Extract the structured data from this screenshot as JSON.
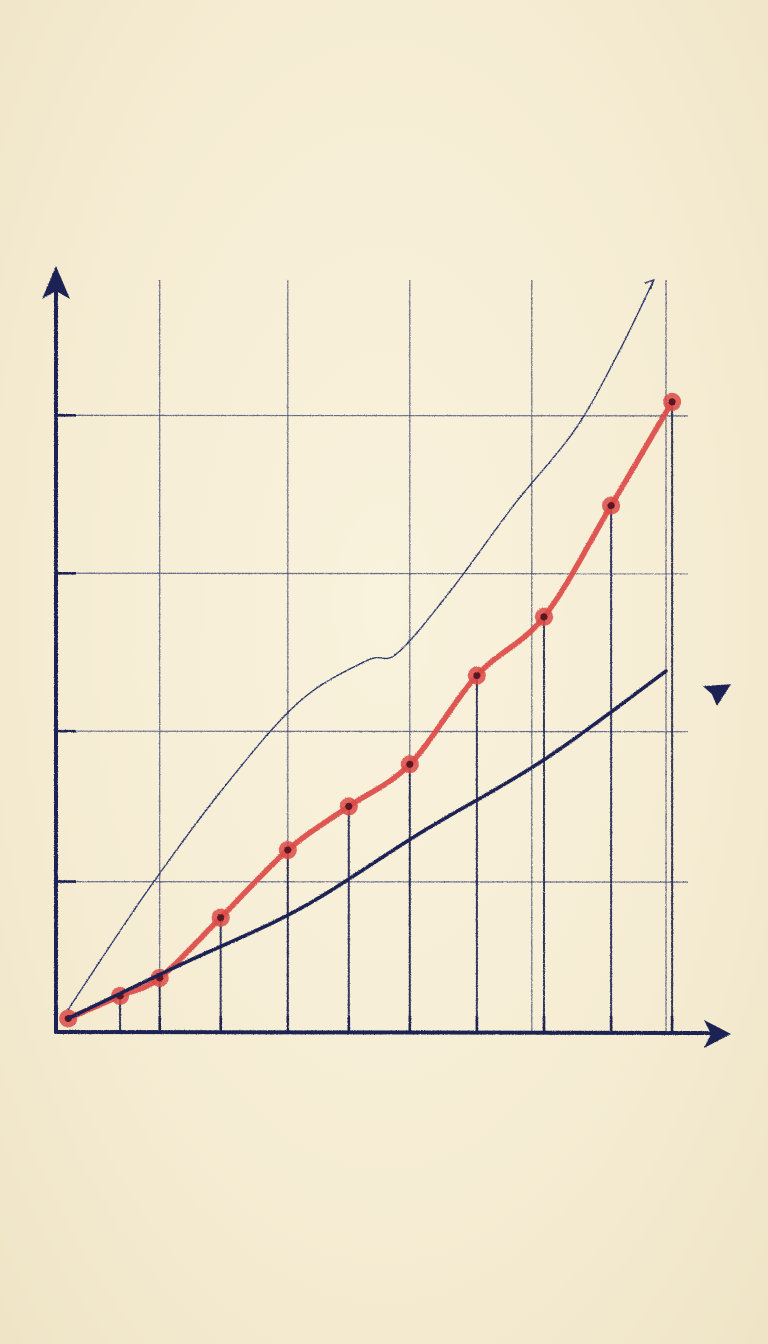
{
  "chart_data": {
    "type": "line",
    "title": "",
    "xlabel": "",
    "ylabel": "",
    "grid": true,
    "xlim": [
      0,
      10
    ],
    "ylim": [
      0,
      5
    ],
    "x_gridlines": [
      1.7,
      3.8,
      5.8,
      7.8,
      10
    ],
    "y_gridlines": [
      1,
      2,
      3.05,
      4.1
    ],
    "x_ticks": [
      1.7,
      2.7,
      3.8,
      4.8,
      5.8,
      6.9,
      8.0,
      9.1,
      10.1
    ],
    "series": [
      {
        "name": "",
        "color": "#dc4a48",
        "markers": true,
        "stems": true,
        "x": [
          0.2,
          1.05,
          1.7,
          2.7,
          3.8,
          4.8,
          5.8,
          6.9,
          8.0,
          9.1,
          10.1
        ],
        "y": [
          0.09,
          0.24,
          0.36,
          0.76,
          1.21,
          1.5,
          1.78,
          2.37,
          2.76,
          3.5,
          4.19
        ]
      },
      {
        "name": "",
        "color": "#1e2452",
        "markers": false,
        "arrow": true,
        "x": [
          0.2,
          2.0,
          4.0,
          6.0,
          8.0,
          10.0,
          10.9
        ],
        "y": [
          0.09,
          0.44,
          0.82,
          1.33,
          1.81,
          2.4,
          2.26
        ]
      },
      {
        "name": "",
        "color": "#283068",
        "markers": false,
        "thin": true,
        "arrow": true,
        "x": [
          0.2,
          1.5,
          2.8,
          4.0,
          5.1,
          5.6,
          6.5,
          7.5,
          8.5,
          9.2,
          9.8
        ],
        "y": [
          0.15,
          0.94,
          1.65,
          2.2,
          2.47,
          2.52,
          2.95,
          3.5,
          4.0,
          4.5,
          5.0
        ]
      }
    ]
  }
}
